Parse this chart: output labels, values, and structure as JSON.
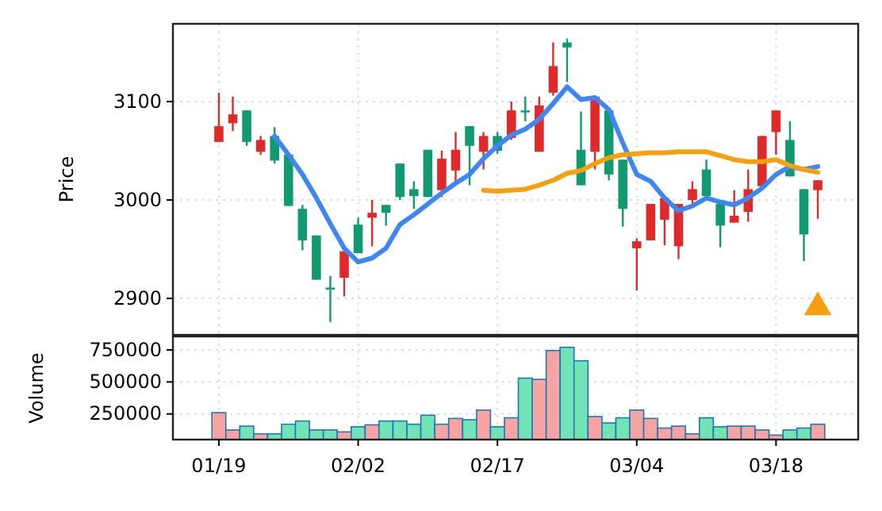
{
  "chart_data": [
    {
      "type": "candlestick",
      "ylabel": "Price",
      "ylim": [
        2863,
        3179
      ],
      "yticks": [
        2900,
        3000,
        3100
      ],
      "grid": true,
      "tick_labels": "y",
      "categories": [
        null,
        null,
        null,
        null,
        null,
        null,
        null,
        null,
        null,
        null,
        null,
        null,
        null,
        null,
        null,
        null,
        null,
        null,
        null,
        null,
        null,
        null,
        null,
        null,
        null,
        null,
        null,
        null,
        null,
        null,
        null,
        null,
        null,
        null,
        null,
        null,
        null,
        null,
        null,
        null,
        null,
        null,
        null,
        null
      ],
      "series": [
        {
          "type": "candlestick",
          "colors": [
            "#df2a2a",
            "#df2a2a",
            "#119a72",
            "#df2a2a",
            "#119a72",
            "#119a72",
            "#119a72",
            "#119a72",
            "#119a72",
            "#df2a2a",
            "#119a72",
            "#df2a2a",
            "#119a72",
            "#119a72",
            "#119a72",
            "#119a72",
            "#df2a2a",
            "#df2a2a",
            "#119a72",
            "#df2a2a",
            "#119a72",
            "#df2a2a",
            "#119a72",
            "#df2a2a",
            "#df2a2a",
            "#119a72",
            "#119a72",
            "#df2a2a",
            "#119a72",
            "#119a72",
            "#df2a2a",
            "#df2a2a",
            "#df2a2a",
            "#df2a2a",
            "#df2a2a",
            "#119a72",
            "#119a72",
            "#df2a2a",
            "#df2a2a",
            "#df2a2a",
            "#df2a2a",
            "#119a72",
            "#119a72",
            "#df2a2a"
          ],
          "ohlc": [
            [
              3075,
              3109,
              3059,
              3059
            ],
            [
              3087,
              3105,
              3070,
              3078
            ],
            [
              3059,
              3091,
              3055,
              3091
            ],
            [
              3061,
              3065,
              3046,
              3049
            ],
            [
              3040,
              3074,
              3037,
              3065
            ],
            [
              2994,
              3046,
              2994,
              3046
            ],
            [
              2959,
              2995,
              2949,
              2991
            ],
            [
              2919,
              2964,
              2919,
              2964
            ],
            [
              2909,
              2923,
              2876,
              2911
            ],
            [
              2948,
              2953,
              2902,
              2921
            ],
            [
              2946,
              2982,
              2946,
              2975
            ],
            [
              2987,
              3000,
              2953,
              2982
            ],
            [
              2987,
              2995,
              2974,
              2995
            ],
            [
              3003,
              3037,
              3000,
              3037
            ],
            [
              3004,
              3019,
              2991,
              3011
            ],
            [
              3003,
              3051,
              3003,
              3051
            ],
            [
              3042,
              3050,
              3003,
              3010
            ],
            [
              3051,
              3069,
              3015,
              3030
            ],
            [
              3055,
              3075,
              3015,
              3075
            ],
            [
              3065,
              3069,
              3031,
              3049
            ],
            [
              3050,
              3069,
              3047,
              3065
            ],
            [
              3091,
              3100,
              3061,
              3063
            ],
            [
              3089,
              3105,
              3080,
              3091
            ],
            [
              3096,
              3105,
              3049,
              3049
            ],
            [
              3136,
              3160,
              3106,
              3109
            ],
            [
              3155,
              3164,
              3120,
              3160
            ],
            [
              3015,
              3090,
              3015,
              3051
            ],
            [
              3105,
              3106,
              3031,
              3049
            ],
            [
              3026,
              3091,
              3020,
              3091
            ],
            [
              2991,
              3041,
              2973,
              3041
            ],
            [
              2958,
              2961,
              2908,
              2951
            ],
            [
              2996,
              2996,
              2959,
              2959
            ],
            [
              3002,
              3002,
              2954,
              2980
            ],
            [
              2996,
              2996,
              2940,
              2953
            ],
            [
              3011,
              3019,
              2995,
              3000
            ],
            [
              3004,
              3041,
              3004,
              3031
            ],
            [
              2974,
              2996,
              2952,
              2996
            ],
            [
              2984,
              3010,
              2977,
              2977
            ],
            [
              3011,
              3031,
              2978,
              2988
            ],
            [
              3065,
              3065,
              3014,
              3014
            ],
            [
              3091,
              3091,
              3046,
              3069
            ],
            [
              3024,
              3080,
              3024,
              3061
            ],
            [
              2965,
              3011,
              2938,
              3011
            ],
            [
              3020,
              3020,
              2981,
              3010
            ]
          ]
        },
        {
          "type": "line",
          "color": "#3f86f5",
          "values": [
            null,
            null,
            null,
            null,
            3065,
            3046,
            3026,
            3002,
            2976,
            2951,
            2937,
            2941,
            2951,
            2975,
            2985,
            2996,
            3007,
            3017,
            3026,
            3042,
            3055,
            3066,
            3072,
            3082,
            3098,
            3115,
            3102,
            3104,
            3092,
            3058,
            3026,
            3019,
            3002,
            2989,
            2994,
            3002,
            2998,
            2995,
            3002,
            3012,
            3026,
            3034,
            3031,
            3034
          ]
        },
        {
          "type": "line",
          "color": "#f5a00f",
          "values": [
            null,
            null,
            null,
            null,
            null,
            null,
            null,
            null,
            null,
            null,
            null,
            null,
            null,
            null,
            null,
            null,
            null,
            null,
            null,
            3010,
            3009,
            3010,
            3011,
            3015,
            3020,
            3027,
            3030,
            3037,
            3043,
            3046,
            3047,
            3048,
            3048,
            3049,
            3049,
            3049,
            3045,
            3041,
            3039,
            3039,
            3041,
            3035,
            3031,
            3028
          ]
        },
        {
          "type": "scatter",
          "marker": "triangle",
          "color": "#f5a00f",
          "values": [
            null,
            null,
            null,
            null,
            null,
            null,
            null,
            null,
            null,
            null,
            null,
            null,
            null,
            null,
            null,
            null,
            null,
            null,
            null,
            null,
            null,
            null,
            null,
            null,
            null,
            null,
            null,
            null,
            null,
            null,
            null,
            null,
            null,
            null,
            null,
            null,
            null,
            null,
            null,
            null,
            null,
            null,
            null,
            2891
          ]
        }
      ]
    },
    {
      "type": "bar",
      "ylabel": "Volume",
      "ylim": [
        50000,
        855000
      ],
      "yticks": [
        250000,
        500000,
        750000
      ],
      "grid": true,
      "categories": [
        "01/19",
        null,
        null,
        null,
        null,
        null,
        null,
        null,
        null,
        null,
        "02/02",
        null,
        null,
        null,
        null,
        null,
        null,
        null,
        null,
        null,
        "02/17",
        null,
        null,
        null,
        null,
        null,
        null,
        null,
        null,
        null,
        "03/04",
        null,
        null,
        null,
        null,
        null,
        null,
        null,
        null,
        null,
        "03/18",
        null,
        null,
        null
      ],
      "values": [
        260000,
        125000,
        155000,
        95000,
        95000,
        170000,
        195000,
        125000,
        125000,
        110000,
        150000,
        165000,
        195000,
        195000,
        170000,
        240000,
        170000,
        215000,
        205000,
        280000,
        150000,
        220000,
        530000,
        520000,
        745000,
        770000,
        665000,
        230000,
        180000,
        220000,
        280000,
        215000,
        140000,
        155000,
        95000,
        220000,
        150000,
        155000,
        155000,
        125000,
        85000,
        125000,
        140000,
        170000
      ],
      "colors": [
        "#f6a3a3",
        "#f6a3a3",
        "#70e4b6",
        "#f6a3a3",
        "#70e4b6",
        "#70e4b6",
        "#70e4b6",
        "#70e4b6",
        "#70e4b6",
        "#f6a3a3",
        "#70e4b6",
        "#f6a3a3",
        "#70e4b6",
        "#70e4b6",
        "#70e4b6",
        "#70e4b6",
        "#f6a3a3",
        "#f6a3a3",
        "#70e4b6",
        "#f6a3a3",
        "#70e4b6",
        "#f6a3a3",
        "#70e4b6",
        "#f6a3a3",
        "#f6a3a3",
        "#70e4b6",
        "#70e4b6",
        "#f6a3a3",
        "#70e4b6",
        "#70e4b6",
        "#f6a3a3",
        "#f6a3a3",
        "#f6a3a3",
        "#f6a3a3",
        "#f6a3a3",
        "#70e4b6",
        "#70e4b6",
        "#f6a3a3",
        "#f6a3a3",
        "#f6a3a3",
        "#f6a3a3",
        "#70e4b6",
        "#70e4b6",
        "#f6a3a3"
      ]
    }
  ]
}
